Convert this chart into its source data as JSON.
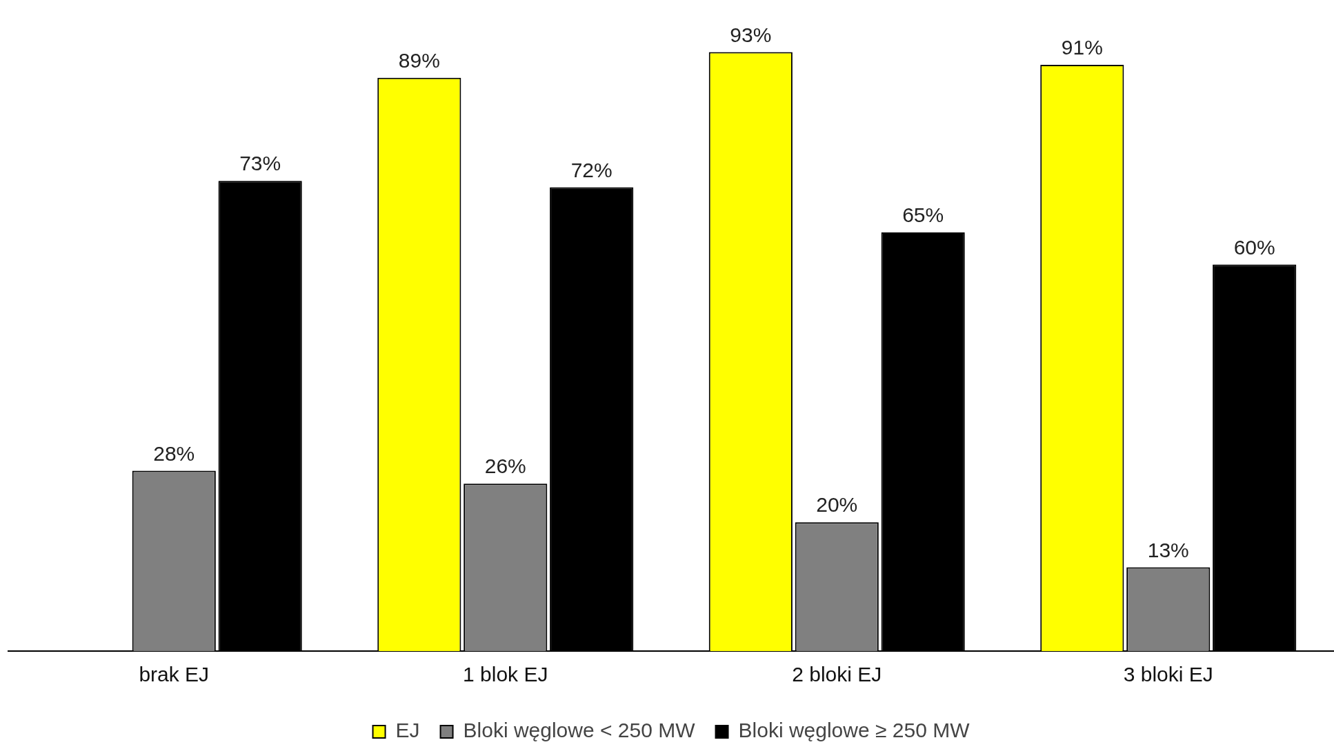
{
  "chart_data": {
    "type": "bar",
    "categories": [
      "brak EJ",
      "1 blok EJ",
      "2 bloki EJ",
      "3 bloki EJ"
    ],
    "series": [
      {
        "name": "EJ",
        "color": "#ffff00",
        "values": [
          null,
          89,
          93,
          91
        ],
        "value_labels": [
          null,
          "89%",
          "93%",
          "91%"
        ]
      },
      {
        "name": "Bloki węglowe < 250 MW",
        "color": "#808080",
        "values": [
          28,
          26,
          20,
          13
        ],
        "value_labels": [
          "28%",
          "26%",
          "20%",
          "13%"
        ]
      },
      {
        "name": "Bloki węglowe ≥ 250 MW",
        "color": "#000000",
        "values": [
          73,
          72,
          65,
          60
        ],
        "value_labels": [
          "73%",
          "72%",
          "65%",
          "60%"
        ]
      }
    ],
    "tick_labels": "x",
    "grid": false,
    "legend": "bottom"
  }
}
